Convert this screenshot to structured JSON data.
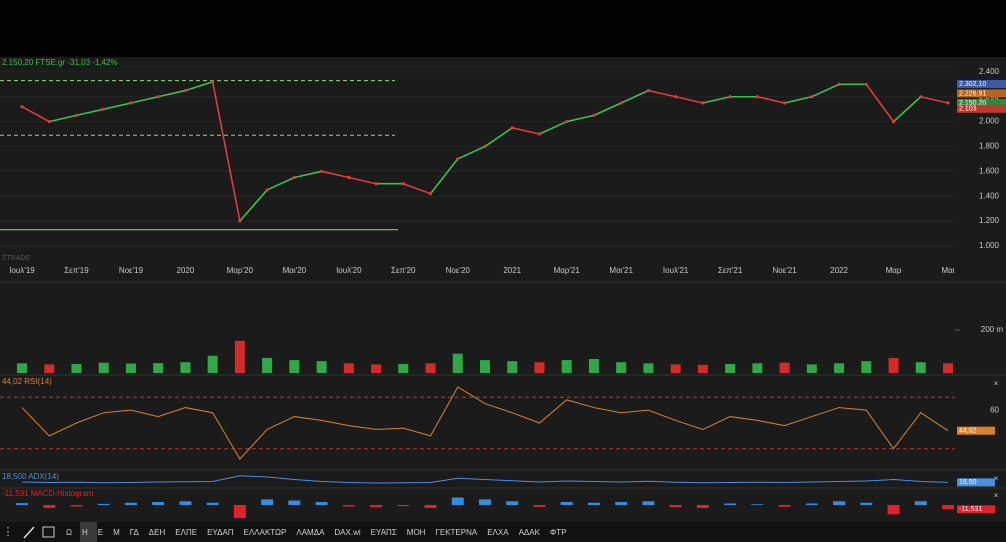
{
  "chart_data": [
    {
      "type": "line",
      "title": "2.150,20 FTSE.gr -31,03 -1,42%",
      "watermark": "ZTRADE",
      "categories": [
        "Ιουλ'19",
        null,
        "Σεπ'19",
        null,
        "Νοε'19",
        null,
        "2020",
        null,
        "Μαρ'20",
        null,
        "Μαι'20",
        null,
        "Ιουλ'20",
        null,
        "Σεπ'20",
        null,
        "Νοε'20",
        null,
        "2021",
        null,
        "Μαρ'21",
        null,
        "Μαι'21",
        null,
        "Ιουλ'21",
        null,
        "Σεπ'21",
        null,
        "Νοε'21",
        null,
        "2022",
        null,
        "Μαρ",
        null,
        "Μαι"
      ],
      "series": [
        {
          "name": "FTSE.gr",
          "color": "#e23b3b",
          "values": [
            2.12,
            2.0,
            2.05,
            2.1,
            2.15,
            2.2,
            2.25,
            2.32,
            1.2,
            1.45,
            1.55,
            1.6,
            1.55,
            1.5,
            1.5,
            1.42,
            1.7,
            1.8,
            1.95,
            1.9,
            2.0,
            2.05,
            2.15,
            2.25,
            2.2,
            2.15,
            2.2,
            2.2,
            2.15,
            2.2,
            2.3,
            2.3,
            2.0,
            2.2,
            2.15
          ]
        }
      ],
      "ylim": [
        0.87,
        2.52
      ],
      "yticks": [
        {
          "value": 2.4,
          "label": "2.400"
        },
        {
          "value": 2.2,
          "label": "2.200"
        },
        {
          "value": 2.0,
          "label": "2.000"
        },
        {
          "value": 1.8,
          "label": "1.800"
        },
        {
          "value": 1.6,
          "label": "1.600"
        },
        {
          "value": 1.4,
          "label": "1.400"
        },
        {
          "value": 1.2,
          "label": "1.200"
        },
        {
          "value": 1.0,
          "label": "1.000"
        }
      ],
      "levels": [
        2.33,
        1.89,
        1.13
      ],
      "level_color": "#8fe07a",
      "price_tags": [
        {
          "value": 2.3021,
          "label": "2.302,10",
          "color": "#3b5aa8"
        },
        {
          "value": 2.22691,
          "label": "2.226,91",
          "color": "#b5651d"
        },
        {
          "value": 2.1502,
          "label": "2.150,20",
          "color": "#2e8b3a"
        },
        {
          "value": 2.103,
          "label": "2.103",
          "color": "#c0392b"
        }
      ]
    },
    {
      "type": "bar",
      "categories_ref": 0,
      "values": [
        45,
        40,
        42,
        48,
        44,
        46,
        50,
        80,
        150,
        70,
        60,
        55,
        45,
        40,
        42,
        45,
        90,
        60,
        55,
        50,
        60,
        65,
        50,
        45,
        40,
        38,
        42,
        45,
        48,
        40,
        45,
        55,
        70,
        50,
        45
      ],
      "up_color": "#2fa84a",
      "down_color": "#d42a2a",
      "ylim": [
        0,
        409
      ],
      "yticks": [
        {
          "value": 200,
          "label": "200 m"
        }
      ]
    },
    {
      "type": "line",
      "title": "44,02 RSI(14)",
      "last_label": "44,02",
      "values": [
        62,
        40,
        50,
        58,
        60,
        55,
        62,
        58,
        22,
        45,
        55,
        52,
        48,
        45,
        46,
        40,
        78,
        65,
        58,
        50,
        68,
        62,
        58,
        60,
        52,
        45,
        55,
        52,
        48,
        55,
        62,
        60,
        30,
        58,
        44.02
      ],
      "color": "#d9822b",
      "ylim": [
        15,
        85
      ],
      "yticks": [
        60
      ],
      "levels": [
        30,
        70
      ],
      "level_color": "#b33a3a"
    },
    {
      "type": "line",
      "title": "18,500 ADX(14)",
      "last_label": "18,50",
      "values": [
        20,
        18,
        19,
        17,
        18,
        20,
        21,
        22,
        45,
        40,
        30,
        22,
        18,
        16,
        17,
        18,
        35,
        30,
        25,
        20,
        24,
        22,
        20,
        23,
        19,
        17,
        18,
        19,
        18,
        20,
        22,
        24,
        30,
        22,
        18.5
      ],
      "color": "#4a8fe0",
      "ylim": [
        0,
        60
      ]
    },
    {
      "type": "bar",
      "title": "-11,531 MACD-Histogram",
      "last_label": "-11,531",
      "values": [
        5,
        -8,
        -4,
        3,
        6,
        8,
        10,
        6,
        -35,
        15,
        12,
        8,
        -4,
        -6,
        -3,
        -8,
        20,
        15,
        10,
        -5,
        8,
        6,
        8,
        10,
        -6,
        -8,
        4,
        2,
        -5,
        4,
        10,
        6,
        -25,
        10,
        -11.531
      ],
      "up_color": "#2f8fe0",
      "down_color": "#e0202a",
      "ylim": [
        -40,
        40
      ]
    }
  ],
  "toolbar": {
    "items": [
      "Ω",
      "Η",
      "Ε",
      "Μ",
      "ΓΔ",
      "ΔΕΗ",
      "ΕΛΠΕ",
      "ΕΥΔΑΠ",
      "ΕΛΛΑΚΤΩΡ",
      "ΛΑΜΔΑ",
      "DAX.wi",
      "ΕΥΑΠΣ",
      "ΜΟΗ",
      "ΓΕΚΤΕΡΝΑ",
      "ΕΛΧΑ",
      "ΑΔΑΚ",
      "ΦΤΡ"
    ]
  }
}
